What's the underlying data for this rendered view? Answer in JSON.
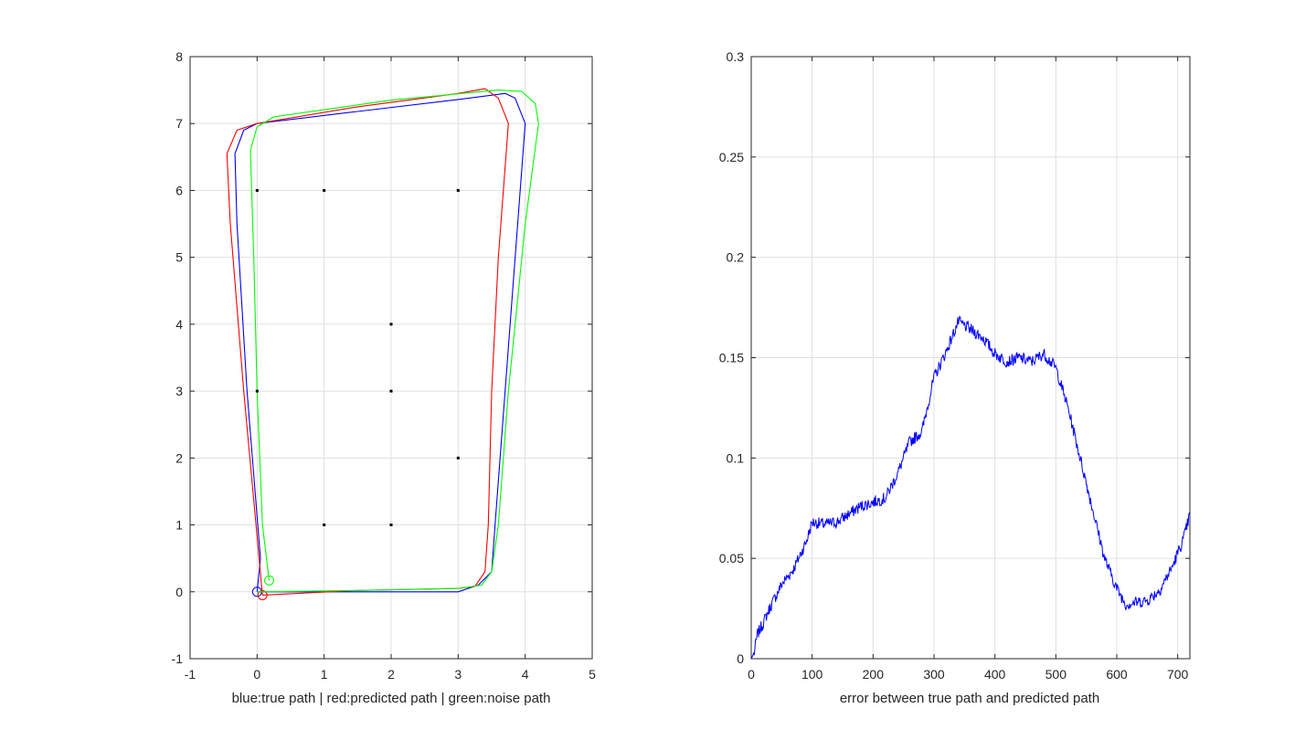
{
  "chart_data": [
    {
      "type": "line",
      "xlabel": "blue:true path | red:predicted path | green:noise path",
      "xlim": [
        -1,
        5
      ],
      "ylim": [
        -1,
        8
      ],
      "xticks": [
        -1,
        0,
        1,
        2,
        3,
        4,
        5
      ],
      "yticks": [
        -1,
        0,
        1,
        2,
        3,
        4,
        5,
        6,
        7,
        8
      ],
      "grid": true,
      "series": [
        {
          "color": "#0000ff",
          "points": [
            [
              0,
              0
            ],
            [
              0.05,
              0.5
            ],
            [
              -0.15,
              3.0
            ],
            [
              -0.3,
              5.5
            ],
            [
              -0.33,
              6.55
            ],
            [
              -0.2,
              6.9
            ],
            [
              0,
              7.0
            ],
            [
              1.5,
              7.18
            ],
            [
              3.0,
              7.36
            ],
            [
              3.7,
              7.45
            ],
            [
              3.85,
              7.38
            ],
            [
              4.0,
              7.0
            ],
            [
              3.85,
              5.0
            ],
            [
              3.7,
              3.0
            ],
            [
              3.55,
              1.0
            ],
            [
              3.5,
              0.3
            ],
            [
              3.3,
              0.1
            ],
            [
              3.0,
              0
            ],
            [
              1.5,
              0
            ],
            [
              0,
              0
            ]
          ],
          "markers": [
            [
              0,
              0
            ]
          ]
        },
        {
          "color": "#ff0000",
          "points": [
            [
              0.08,
              -0.05
            ],
            [
              0.03,
              0.5
            ],
            [
              -0.2,
              3.0
            ],
            [
              -0.4,
              5.5
            ],
            [
              -0.45,
              6.55
            ],
            [
              -0.3,
              6.9
            ],
            [
              0,
              7.0
            ],
            [
              1.5,
              7.25
            ],
            [
              3.0,
              7.45
            ],
            [
              3.4,
              7.52
            ],
            [
              3.6,
              7.38
            ],
            [
              3.75,
              7.0
            ],
            [
              3.6,
              5.0
            ],
            [
              3.5,
              3.0
            ],
            [
              3.45,
              1.0
            ],
            [
              3.4,
              0.3
            ],
            [
              3.25,
              0.08
            ],
            [
              3.0,
              0.05
            ],
            [
              1.5,
              0.02
            ],
            [
              0.08,
              -0.05
            ]
          ],
          "markers": [
            [
              0.08,
              -0.05
            ]
          ]
        },
        {
          "color": "#00ff00",
          "points": [
            [
              0.18,
              0.17
            ],
            [
              0.08,
              1.0
            ],
            [
              0,
              3.0
            ],
            [
              -0.05,
              5.0
            ],
            [
              -0.1,
              6.6
            ],
            [
              0,
              6.95
            ],
            [
              0.25,
              7.1
            ],
            [
              2.0,
              7.35
            ],
            [
              3.6,
              7.5
            ],
            [
              3.95,
              7.48
            ],
            [
              4.15,
              7.3
            ],
            [
              4.2,
              7.0
            ],
            [
              4.0,
              5.5
            ],
            [
              3.75,
              3.0
            ],
            [
              3.6,
              1.0
            ],
            [
              3.5,
              0.3
            ],
            [
              3.35,
              0.1
            ],
            [
              3.0,
              0.05
            ],
            [
              1.5,
              0.02
            ],
            [
              0,
              0
            ]
          ],
          "markers": [
            [
              0.18,
              0.17
            ]
          ]
        },
        {
          "color": "#000000",
          "name": "",
          "scatter": [
            [
              0,
              6
            ],
            [
              1,
              6
            ],
            [
              3,
              6
            ],
            [
              2,
              4
            ],
            [
              0,
              3
            ],
            [
              2,
              3
            ],
            [
              3,
              2
            ],
            [
              1,
              1
            ],
            [
              2,
              1
            ]
          ]
        }
      ]
    },
    {
      "type": "line",
      "xlabel": "error between true path and predicted path",
      "xlim": [
        0,
        720
      ],
      "ylim": [
        0,
        0.3
      ],
      "xticks": [
        0,
        100,
        200,
        300,
        400,
        500,
        600,
        700
      ],
      "yticks": [
        0,
        0.05,
        0.1,
        0.15,
        0.2,
        0.25,
        0.3
      ],
      "grid": true,
      "series": [
        {
          "color": "#0000ff",
          "anchors": [
            [
              0,
              0
            ],
            [
              5,
              0.003
            ],
            [
              10,
              0.012
            ],
            [
              20,
              0.018
            ],
            [
              30,
              0.025
            ],
            [
              50,
              0.037
            ],
            [
              70,
              0.045
            ],
            [
              90,
              0.058
            ],
            [
              100,
              0.068
            ],
            [
              120,
              0.067
            ],
            [
              140,
              0.068
            ],
            [
              160,
              0.072
            ],
            [
              180,
              0.076
            ],
            [
              200,
              0.078
            ],
            [
              220,
              0.08
            ],
            [
              240,
              0.092
            ],
            [
              260,
              0.108
            ],
            [
              280,
              0.113
            ],
            [
              300,
              0.14
            ],
            [
              320,
              0.153
            ],
            [
              340,
              0.168
            ],
            [
              360,
              0.164
            ],
            [
              380,
              0.16
            ],
            [
              400,
              0.152
            ],
            [
              420,
              0.148
            ],
            [
              440,
              0.15
            ],
            [
              460,
              0.148
            ],
            [
              480,
              0.152
            ],
            [
              500,
              0.145
            ],
            [
              520,
              0.125
            ],
            [
              540,
              0.1
            ],
            [
              560,
              0.075
            ],
            [
              580,
              0.05
            ],
            [
              600,
              0.035
            ],
            [
              615,
              0.027
            ],
            [
              630,
              0.028
            ],
            [
              650,
              0.029
            ],
            [
              670,
              0.034
            ],
            [
              690,
              0.045
            ],
            [
              710,
              0.06
            ],
            [
              720,
              0.072
            ]
          ]
        }
      ]
    }
  ]
}
